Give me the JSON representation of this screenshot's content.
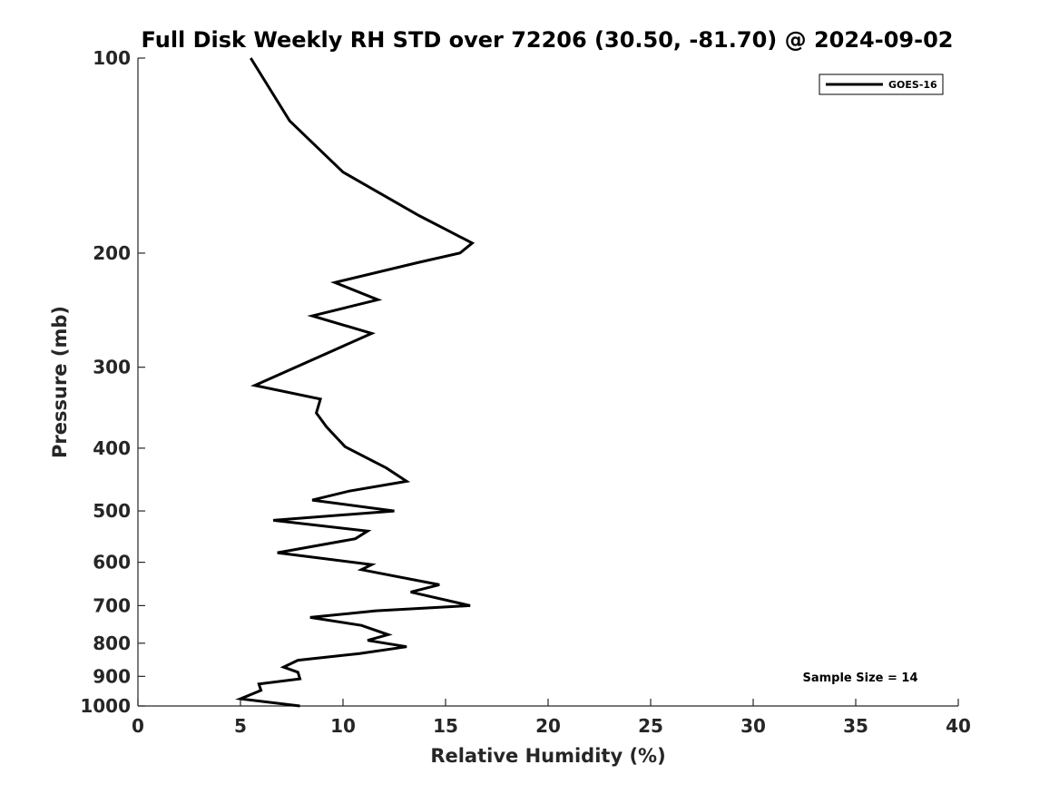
{
  "chart_data": {
    "type": "line",
    "title": "Full Disk Weekly RH STD over 72206 (30.50, -81.70) @ 2024-09-02",
    "xlabel": "Relative Humidity (%)",
    "ylabel": "Pressure (mb)",
    "xlim": [
      0,
      40
    ],
    "ylim": [
      100,
      1000
    ],
    "y_scale": "log",
    "y_inverted": true,
    "x_ticks": [
      "0",
      "5",
      "10",
      "15",
      "20",
      "25",
      "30",
      "35",
      "40"
    ],
    "y_ticks": [
      "100",
      "200",
      "300",
      "400",
      "500",
      "600",
      "700",
      "800",
      "900",
      "1000"
    ],
    "grid": false,
    "legend_position": "top-right",
    "series": [
      {
        "name": "GOES-16",
        "color": "#000000",
        "points": [
          [
            5.5,
            100
          ],
          [
            7.4,
            125
          ],
          [
            10.0,
            150
          ],
          [
            13.7,
            175
          ],
          [
            16.3,
            193
          ],
          [
            15.7,
            200
          ],
          [
            13.6,
            207
          ],
          [
            9.6,
            222
          ],
          [
            11.7,
            236
          ],
          [
            8.5,
            250
          ],
          [
            11.4,
            266
          ],
          [
            5.7,
            320
          ],
          [
            8.9,
            336
          ],
          [
            8.7,
            353
          ],
          [
            9.2,
            371
          ],
          [
            10.1,
            398
          ],
          [
            12.1,
            429
          ],
          [
            13.1,
            450
          ],
          [
            10.3,
            466
          ],
          [
            8.5,
            481
          ],
          [
            12.5,
            500
          ],
          [
            6.6,
            517
          ],
          [
            11.2,
            537
          ],
          [
            10.6,
            552
          ],
          [
            6.8,
            580
          ],
          [
            11.4,
            605
          ],
          [
            10.9,
            616
          ],
          [
            14.7,
            650
          ],
          [
            13.3,
            667
          ],
          [
            16.2,
            700
          ],
          [
            11.6,
            713
          ],
          [
            8.4,
            730
          ],
          [
            10.9,
            751
          ],
          [
            12.2,
            776
          ],
          [
            11.2,
            792
          ],
          [
            13.1,
            810
          ],
          [
            10.8,
            830
          ],
          [
            7.8,
            850
          ],
          [
            7.1,
            871
          ],
          [
            7.8,
            887
          ],
          [
            7.9,
            908
          ],
          [
            5.9,
            925
          ],
          [
            6.0,
            946
          ],
          [
            5.0,
            975
          ],
          [
            7.9,
            1000
          ]
        ]
      }
    ],
    "annotations": [
      "Sample Size = 14"
    ]
  }
}
